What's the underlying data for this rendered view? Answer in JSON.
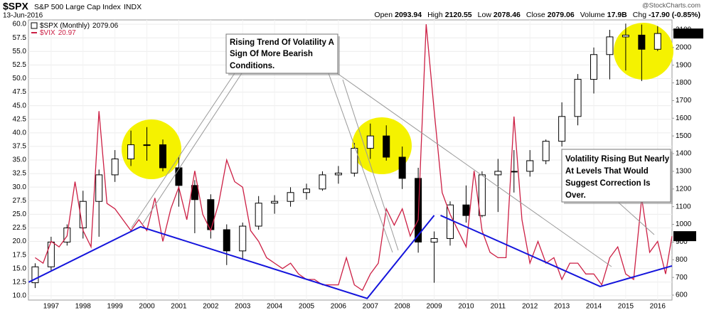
{
  "chart_data": {
    "type": "candlestick",
    "title": "$SPX",
    "subtitle": "S&P 500 Large Cap Index",
    "exchange": "INDX",
    "date": "13-Jun-2016",
    "quote": [
      {
        "label": "Open",
        "value": "2093.94"
      },
      {
        "label": "High",
        "value": "2120.55"
      },
      {
        "label": "Low",
        "value": "2078.46"
      },
      {
        "label": "Close",
        "value": "2079.06"
      },
      {
        "label": "Volume",
        "value": "17.9B"
      },
      {
        "label": "Chg",
        "value": "-17.90 (-0.85%)"
      }
    ],
    "watermark": "@StockCharts.com",
    "xlim": [
      1996.29,
      2016.45
    ],
    "xticks": [
      1997,
      1998,
      1999,
      2000,
      2001,
      2002,
      2003,
      2004,
      2005,
      2006,
      2007,
      2008,
      2009,
      2010,
      2011,
      2012,
      2013,
      2014,
      2015,
      2016
    ],
    "ylim": [
      9.2,
      60.8
    ],
    "yticks": [
      {
        "value": 10,
        "label": "10.0"
      },
      12.5,
      {
        "value": 15,
        "label": "15.0"
      },
      17.5,
      {
        "value": 20,
        "label": "20.0"
      },
      22.5,
      {
        "value": 25,
        "label": "25.0"
      },
      27.5,
      {
        "value": 30,
        "label": "30.0"
      },
      32.5,
      {
        "value": 35,
        "label": "35.0"
      },
      37.5,
      {
        "value": 40,
        "label": "40.0"
      },
      42.5,
      {
        "value": 45,
        "label": "45.0"
      },
      47.5,
      {
        "value": 50,
        "label": "50.0"
      },
      52.5,
      {
        "value": 55,
        "label": "55.0"
      },
      57.5,
      {
        "value": 60,
        "label": "60.0"
      }
    ],
    "y2lim": [
      572,
      2156
    ],
    "y2ticks": [
      600,
      700,
      800,
      900,
      1000,
      1100,
      1200,
      1300,
      1400,
      1500,
      1600,
      1700,
      1800,
      1900,
      2000,
      2100
    ],
    "grid": true,
    "spx": {
      "name": "$SPX (Monthly)",
      "color": "#000000",
      "axis": "y2",
      "x": [
        1996.5,
        1997,
        1997.5,
        1998,
        1998.5,
        1999,
        1999.5,
        2000,
        2000.5,
        2001,
        2001.5,
        2002,
        2002.5,
        2003,
        2003.5,
        2004,
        2004.5,
        2005,
        2005.5,
        2006,
        2006.5,
        2007,
        2007.5,
        2008,
        2008.5,
        2009,
        2009.5,
        2010,
        2010.5,
        2011,
        2011.5,
        2012,
        2012.5,
        2013,
        2013.5,
        2014,
        2014.5,
        2015,
        2015.5,
        2016
      ],
      "open": [
        670,
        760,
        900,
        980,
        1130,
        1280,
        1370,
        1450,
        1450,
        1320,
        1220,
        1140,
        970,
        850,
        990,
        1120,
        1130,
        1180,
        1200,
        1280,
        1290,
        1430,
        1500,
        1380,
        1260,
        900,
        920,
        1110,
        1050,
        1280,
        1300,
        1300,
        1360,
        1470,
        1610,
        1820,
        1960,
        2060,
        2070,
        1990
      ],
      "high": [
        780,
        930,
        1000,
        1190,
        1310,
        1420,
        1530,
        1550,
        1480,
        1380,
        1250,
        1170,
        1000,
        1010,
        1160,
        1165,
        1210,
        1230,
        1300,
        1330,
        1460,
        1570,
        1560,
        1440,
        1320,
        960,
        1130,
        1220,
        1300,
        1370,
        1420,
        1420,
        1480,
        1690,
        1850,
        2000,
        2100,
        2135,
        2130,
        2120.55
      ],
      "low": [
        640,
        740,
        880,
        920,
        930,
        1240,
        1330,
        1360,
        1300,
        1100,
        950,
        920,
        770,
        800,
        970,
        1060,
        1100,
        1140,
        1190,
        1230,
        1270,
        1370,
        1360,
        1200,
        840,
        670,
        880,
        1010,
        1040,
        1070,
        1180,
        1270,
        1340,
        1440,
        1560,
        1740,
        1820,
        1870,
        1810,
        1980
      ],
      "close": [
        760,
        900,
        980,
        1130,
        1280,
        1370,
        1450,
        1450,
        1320,
        1220,
        1140,
        970,
        850,
        990,
        1120,
        1130,
        1180,
        1200,
        1280,
        1290,
        1430,
        1500,
        1380,
        1260,
        900,
        920,
        1110,
        1050,
        1280,
        1300,
        1300,
        1360,
        1470,
        1610,
        1820,
        1960,
        2060,
        2070,
        1990,
        2079.06
      ]
    },
    "vix": {
      "name": "$VIX",
      "color": "#cc1f44",
      "x": [
        1996.5,
        1996.75,
        1997,
        1997.25,
        1997.5,
        1997.75,
        1998,
        1998.25,
        1998.5,
        1998.75,
        1999,
        1999.25,
        1999.5,
        1999.75,
        2000,
        2000.25,
        2000.5,
        2000.75,
        2001,
        2001.25,
        2001.5,
        2001.75,
        2002,
        2002.25,
        2002.5,
        2002.75,
        2003,
        2003.25,
        2003.5,
        2003.75,
        2004,
        2004.25,
        2004.5,
        2004.75,
        2005,
        2005.25,
        2005.5,
        2005.75,
        2006,
        2006.25,
        2006.5,
        2006.75,
        2007,
        2007.25,
        2007.5,
        2007.75,
        2008,
        2008.25,
        2008.5,
        2008.75,
        2009,
        2009.25,
        2009.5,
        2009.75,
        2010,
        2010.25,
        2010.5,
        2010.75,
        2011,
        2011.25,
        2011.5,
        2011.75,
        2012,
        2012.25,
        2012.5,
        2012.75,
        2013,
        2013.25,
        2013.5,
        2013.75,
        2014,
        2014.25,
        2014.5,
        2014.75,
        2015,
        2015.25,
        2015.5,
        2015.75,
        2016,
        2016.25,
        2016.45
      ],
      "values": [
        17,
        16,
        20,
        19,
        21,
        31,
        22,
        19,
        44,
        27,
        26,
        24,
        22,
        24,
        22,
        28,
        20,
        26,
        30,
        24,
        33,
        25,
        22,
        27,
        35,
        31,
        30,
        22,
        20,
        17,
        16,
        15,
        16,
        14,
        13,
        13,
        12,
        12,
        12,
        17,
        12,
        11,
        14,
        16,
        26,
        23,
        26,
        21,
        24,
        60,
        44,
        29,
        25,
        22,
        19,
        33,
        22,
        18,
        17,
        17,
        43,
        24,
        16,
        20,
        16,
        17,
        13,
        16,
        16,
        14,
        14,
        12,
        17,
        19,
        14,
        13,
        28,
        18,
        20,
        14,
        20.97
      ]
    },
    "trendlines": [
      {
        "color": "#1414dc",
        "x": [
          1996.3,
          1999.8,
          2006.9,
          2009.0
        ],
        "y": [
          12.5,
          22.7,
          9.5,
          24.8
        ]
      },
      {
        "color": "#1414dc",
        "x": [
          2009.2,
          2014.2,
          2016.45
        ],
        "y": [
          24.8,
          11.7,
          15.5
        ]
      }
    ],
    "annotations": [
      {
        "lines": [
          "Rising Trend Of Volatility A",
          "Sign Of More Bearish",
          "Conditions."
        ]
      },
      {
        "lines": [
          "Volatility Rising But Nearly",
          "At Levels That Would",
          "Suggest Correction Is",
          "Over."
        ]
      }
    ]
  }
}
